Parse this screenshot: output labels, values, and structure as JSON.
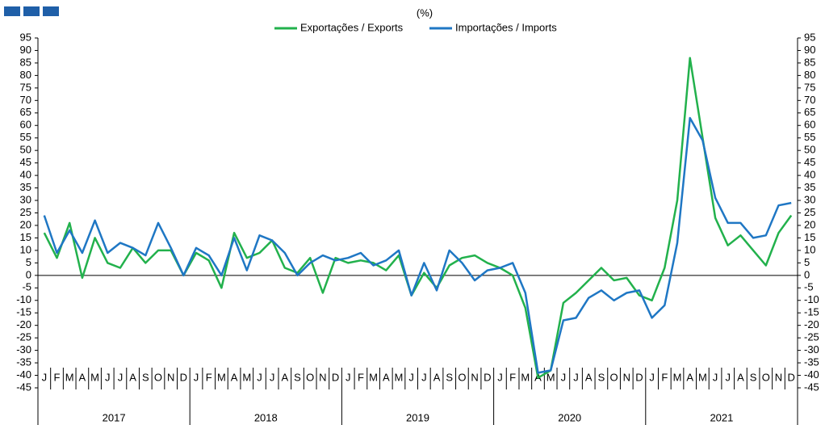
{
  "chart_data": {
    "type": "line",
    "subtitle": "(%)",
    "categories": [
      "J",
      "F",
      "M",
      "A",
      "M",
      "J",
      "J",
      "A",
      "S",
      "O",
      "N",
      "D",
      "J",
      "F",
      "M",
      "A",
      "M",
      "J",
      "J",
      "A",
      "S",
      "O",
      "N",
      "D",
      "J",
      "F",
      "M",
      "A",
      "M",
      "J",
      "J",
      "A",
      "S",
      "O",
      "N",
      "D",
      "J",
      "F",
      "M",
      "A",
      "M",
      "J",
      "J",
      "A",
      "S",
      "O",
      "N",
      "D",
      "J",
      "F",
      "M",
      "A",
      "M",
      "J",
      "J",
      "A",
      "S",
      "O",
      "N",
      "D"
    ],
    "years": [
      "2017",
      "2018",
      "2019",
      "2020",
      "2021"
    ],
    "series": [
      {
        "name": "Exportações / Exports",
        "color": "#22b14c",
        "values": [
          17,
          7,
          21,
          -1,
          15,
          5,
          3,
          11,
          5,
          10,
          10,
          0,
          9,
          6,
          -5,
          17,
          7,
          9,
          14,
          3,
          1,
          7,
          -7,
          7,
          5,
          6,
          5,
          2,
          8,
          -8,
          1,
          -5,
          4,
          7,
          8,
          5,
          3,
          0,
          -13,
          -41,
          -38,
          -11,
          -7,
          -2,
          3,
          -2,
          -1,
          -8,
          -10,
          3,
          30,
          87,
          55,
          23,
          12,
          16,
          10,
          4,
          17,
          24
        ]
      },
      {
        "name": "Importações / Imports",
        "color": "#1f77c4",
        "values": [
          24,
          9,
          18,
          9,
          22,
          9,
          13,
          11,
          8,
          21,
          11,
          0,
          11,
          8,
          0,
          15,
          2,
          16,
          14,
          9,
          0,
          5,
          8,
          6,
          7,
          9,
          4,
          6,
          10,
          -8,
          5,
          -6,
          10,
          5,
          -2,
          2,
          3,
          5,
          -7,
          -39,
          -38,
          -18,
          -17,
          -9,
          -6,
          -10,
          -7,
          -6,
          -17,
          -12,
          13,
          63,
          54,
          31,
          21,
          21,
          15,
          16,
          28,
          29
        ]
      }
    ],
    "ylim": [
      -45,
      95
    ],
    "yticks": [
      -45,
      -40,
      -35,
      -30,
      -25,
      -20,
      -15,
      -10,
      -5,
      0,
      5,
      10,
      15,
      20,
      25,
      30,
      35,
      40,
      45,
      50,
      55,
      60,
      65,
      70,
      75,
      80,
      85,
      90,
      95
    ]
  }
}
